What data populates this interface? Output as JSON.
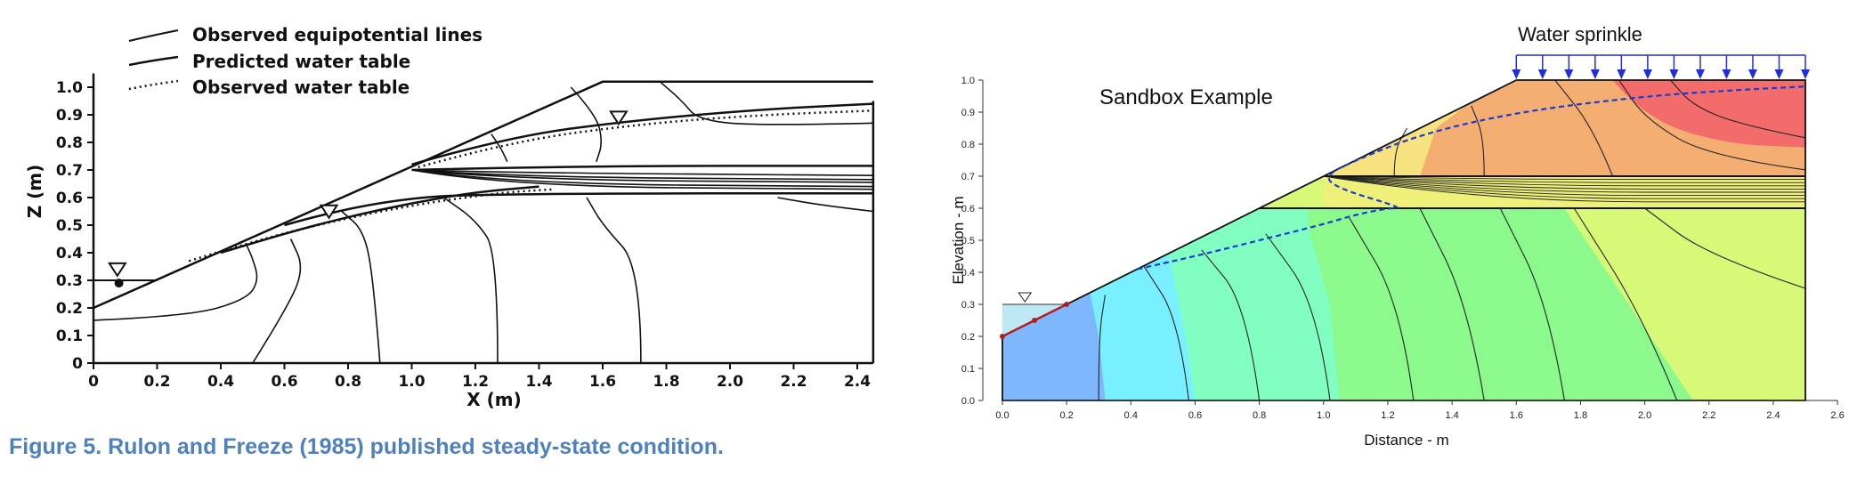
{
  "caption": "Figure 5.  Rulon and Freeze (1985) published steady-state condition.",
  "chart_data": [
    {
      "type": "line",
      "title": "",
      "xlabel": "X (m)",
      "ylabel": "Z (m)",
      "xlim": [
        0,
        2.45
      ],
      "ylim": [
        0,
        1.05
      ],
      "xticks": [
        "0",
        "0.2",
        "0.4",
        "0.6",
        "0.8",
        "1.0",
        "1.2",
        "1.4",
        "1.6",
        "1.8",
        "2.0",
        "2.2",
        "2.4"
      ],
      "yticks": [
        "0",
        "0.1",
        "0.2",
        "0.3",
        "0.4",
        "0.5",
        "0.6",
        "0.7",
        "0.8",
        "0.9",
        "1.0"
      ],
      "legend": [
        "Observed equipotential lines",
        "Predicted water table",
        "Observed water table"
      ],
      "legend_position": "top-left",
      "grid": false,
      "series": [
        {
          "name": "Predicted water table",
          "x": [
            0.4,
            0.6,
            0.8,
            1.0,
            1.2,
            1.4
          ],
          "y": [
            0.4,
            0.47,
            0.53,
            0.58,
            0.62,
            0.64
          ]
        },
        {
          "name": "Observed water table",
          "x": [
            0.3,
            0.5,
            0.7,
            0.9,
            1.1,
            1.3,
            1.45
          ],
          "y": [
            0.37,
            0.44,
            0.5,
            0.55,
            0.59,
            0.62,
            0.63
          ]
        }
      ]
    },
    {
      "type": "heatmap",
      "title": "Sandbox Example",
      "annotation": "Water sprinkle",
      "xlabel": "Distance - m",
      "ylabel": "Elevation - m",
      "xlim": [
        0,
        2.6
      ],
      "ylim": [
        0,
        1.0
      ],
      "xticks": [
        "0.0",
        "0.2",
        "0.4",
        "0.6",
        "0.8",
        "1.0",
        "1.2",
        "1.4",
        "1.6",
        "1.8",
        "2.0",
        "2.2",
        "2.4",
        "2.6"
      ],
      "yticks": [
        "0.0",
        "0.1",
        "0.2",
        "0.3",
        "0.4",
        "0.5",
        "0.6",
        "0.7",
        "0.8",
        "0.9",
        "1.0"
      ],
      "grid": false,
      "domain_outline": {
        "x": [
          0,
          0,
          2.5,
          2.5,
          1.6,
          0
        ],
        "y": [
          0.2,
          0,
          0,
          1.0,
          1.0,
          0.2
        ]
      },
      "water_table": {
        "x": [
          0.42,
          0.6,
          0.8,
          1.0,
          1.1,
          1.2,
          1.25,
          1.05,
          1.0,
          1.1,
          1.3,
          1.6,
          2.0,
          2.3,
          2.5
        ],
        "y": [
          0.41,
          0.45,
          0.5,
          0.55,
          0.58,
          0.6,
          0.6,
          0.66,
          0.7,
          0.75,
          0.83,
          0.9,
          0.95,
          0.97,
          0.98
        ]
      },
      "colors": [
        "#7fb7ff",
        "#79f0ff",
        "#80ffc0",
        "#8cf98c",
        "#d8f878",
        "#f6e27e",
        "#f5ae72",
        "#f36c6c"
      ]
    }
  ]
}
